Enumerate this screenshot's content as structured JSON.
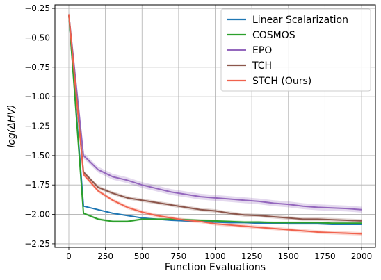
{
  "chart_data": {
    "type": "line",
    "xlabel": "Function Evaluations",
    "ylabel": "log(ΔHV)",
    "xlim": [
      -95,
      2095
    ],
    "ylim": [
      -2.28,
      -0.22
    ],
    "xticks": [
      0,
      250,
      500,
      750,
      1000,
      1250,
      1500,
      1750,
      2000
    ],
    "xtick_labels": [
      "0",
      "250",
      "500",
      "750",
      "1000",
      "1250",
      "1500",
      "1750",
      "2000"
    ],
    "yticks": [
      -0.25,
      -0.5,
      -0.75,
      -1.0,
      -1.25,
      -1.5,
      -1.75,
      -2.0,
      -2.25
    ],
    "ytick_labels": [
      "−0.25",
      "−0.50",
      "−0.75",
      "−1.00",
      "−1.25",
      "−1.50",
      "−1.75",
      "−2.00",
      "−2.25"
    ],
    "grid": true,
    "legend_position": "top-right",
    "x": [
      0,
      100,
      200,
      300,
      400,
      500,
      600,
      700,
      800,
      900,
      1000,
      1100,
      1200,
      1300,
      1400,
      1500,
      1600,
      1700,
      1800,
      1900,
      2000
    ],
    "series": [
      {
        "name": "Linear Scalarization",
        "color": "#1f77b4",
        "values": [
          -0.3,
          -1.93,
          -1.96,
          -1.99,
          -2.01,
          -2.03,
          -2.04,
          -2.05,
          -2.055,
          -2.06,
          -2.065,
          -2.07,
          -2.07,
          -2.075,
          -2.075,
          -2.08,
          -2.08,
          -2.08,
          -2.085,
          -2.085,
          -2.085
        ],
        "band": 0.005
      },
      {
        "name": "COSMOS",
        "color": "#2ca02c",
        "values": [
          -0.3,
          -1.99,
          -2.04,
          -2.06,
          -2.06,
          -2.04,
          -2.04,
          -2.04,
          -2.045,
          -2.05,
          -2.055,
          -2.06,
          -2.065,
          -2.065,
          -2.07,
          -2.07,
          -2.07,
          -2.07,
          -2.075,
          -2.075,
          -2.075
        ],
        "band": 0.01
      },
      {
        "name": "EPO",
        "color": "#9467bd",
        "values": [
          -0.3,
          -1.5,
          -1.62,
          -1.68,
          -1.71,
          -1.75,
          -1.78,
          -1.81,
          -1.83,
          -1.85,
          -1.86,
          -1.87,
          -1.88,
          -1.89,
          -1.905,
          -1.915,
          -1.93,
          -1.94,
          -1.945,
          -1.95,
          -1.96
        ],
        "band": 0.025
      },
      {
        "name": "TCH",
        "color": "#8c564b",
        "values": [
          -0.3,
          -1.64,
          -1.77,
          -1.82,
          -1.86,
          -1.88,
          -1.9,
          -1.92,
          -1.94,
          -1.96,
          -1.97,
          -1.99,
          -2.005,
          -2.01,
          -2.02,
          -2.03,
          -2.04,
          -2.04,
          -2.045,
          -2.05,
          -2.055
        ],
        "band": 0.015
      },
      {
        "name": "STCH (Ours)",
        "color": "#f0624d",
        "values": [
          -0.3,
          -1.66,
          -1.8,
          -1.88,
          -1.94,
          -1.98,
          -2.01,
          -2.03,
          -2.05,
          -2.06,
          -2.08,
          -2.09,
          -2.1,
          -2.11,
          -2.12,
          -2.13,
          -2.14,
          -2.15,
          -2.155,
          -2.16,
          -2.165
        ],
        "band": 0.015
      }
    ]
  }
}
